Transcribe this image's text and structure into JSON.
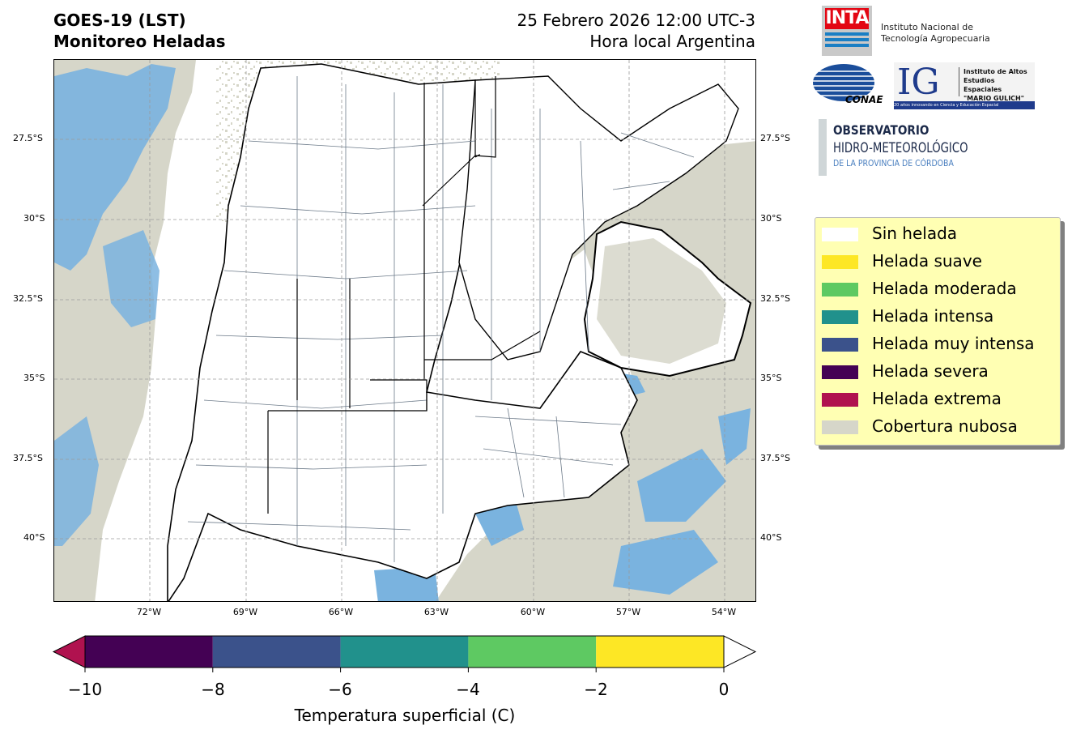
{
  "header": {
    "title_line1": "GOES-19 (LST)",
    "title_line2": "Monitoreo Heladas",
    "date_line": "25 Febrero 2026 12:00 UTC-3",
    "local_time_line": "Hora local Argentina"
  },
  "map": {
    "lat_labels": [
      "27.5°S",
      "30°S",
      "32.5°S",
      "35°S",
      "37.5°S",
      "40°S"
    ],
    "lon_labels": [
      "72°W",
      "69°W",
      "66°W",
      "63°W",
      "60°W",
      "57°W",
      "54°W"
    ],
    "colors": {
      "cloud": "#d6d6c9",
      "water_blue": "#7ab3df",
      "land": "#ffffff",
      "dept_lines": "#6c7a89",
      "prov_lines": "#000000"
    }
  },
  "logos": {
    "inta_mark": "INTA",
    "inta_name_line1": "Instituto Nacional de",
    "inta_name_line2": "Tecnología Agropecuaria",
    "conae_mark": "CONAE",
    "ig_mark": "IG",
    "ig_line1": "Instituto de Altos",
    "ig_line2": "Estudios Espaciales",
    "ig_line3": "\"MARIO GULICH\"",
    "ig_tagline": "20 años innovando en Ciencia y Educación Espacial",
    "obs_line1": "OBSERVATORIO",
    "obs_line2": "HIDRO-METEOROLÓGICO",
    "obs_line3": "DE LA PROVINCIA DE CÓRDOBA"
  },
  "legend": {
    "items": [
      {
        "label": "Sin helada",
        "color": "#ffffff"
      },
      {
        "label": "Helada suave",
        "color": "#fde725"
      },
      {
        "label": "Helada moderada",
        "color": "#5ec962"
      },
      {
        "label": "Helada intensa",
        "color": "#21918c"
      },
      {
        "label": "Helada muy intensa",
        "color": "#3b528b"
      },
      {
        "label": "Helada severa",
        "color": "#440154"
      },
      {
        "label": "Helada extrema",
        "color": "#b0124f"
      },
      {
        "label": "Cobertura nubosa",
        "color": "#d6d6c9"
      }
    ]
  },
  "colorbar": {
    "ticks": [
      "−10",
      "−8",
      "−6",
      "−4",
      "−2",
      "0"
    ],
    "tick_values": [
      -10,
      -8,
      -6,
      -4,
      -2,
      0
    ],
    "segments": [
      {
        "from": -10,
        "to": -8,
        "color": "#440154"
      },
      {
        "from": -8,
        "to": -6,
        "color": "#3b528b"
      },
      {
        "from": -6,
        "to": -4,
        "color": "#21918c"
      },
      {
        "from": -4,
        "to": -2,
        "color": "#5ec962"
      },
      {
        "from": -2,
        "to": 0,
        "color": "#fde725"
      }
    ],
    "under_color": "#b0124f",
    "over_color": "#ffffff",
    "label": "Temperatura superficial (C)"
  }
}
